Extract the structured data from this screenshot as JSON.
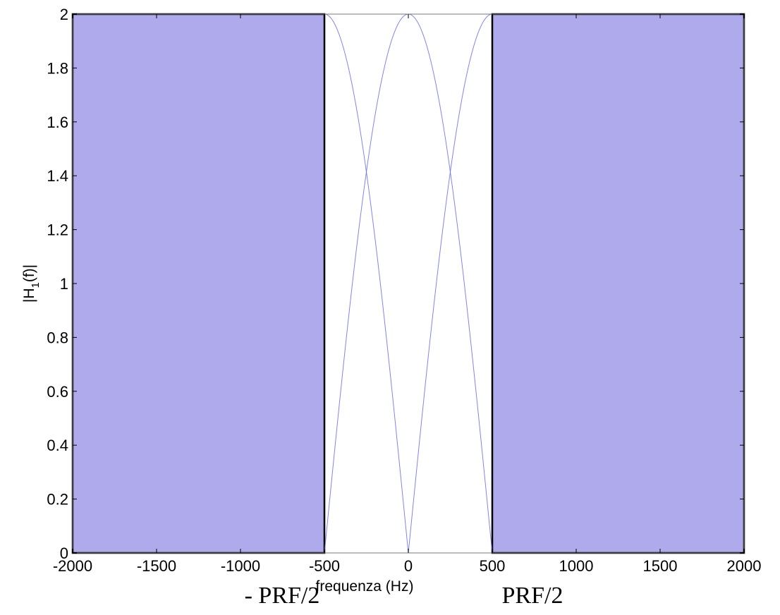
{
  "chart_data": {
    "type": "line",
    "xlabel": "frequenza (Hz)",
    "ylabel_main": "|H",
    "ylabel_sub": "1",
    "ylabel_tail": "(f)|",
    "xlim": [
      -2000,
      2000
    ],
    "ylim": [
      0,
      2
    ],
    "x_ticks": [
      -2000,
      -1500,
      -1000,
      -500,
      0,
      500,
      1000,
      1500,
      2000
    ],
    "x_tick_labels": [
      "-2000",
      "-1500",
      "-1000",
      "-500",
      "0",
      "500",
      "1000",
      "1500",
      "2000"
    ],
    "y_ticks": [
      0,
      0.2,
      0.4,
      0.6,
      0.8,
      1,
      1.2,
      1.4,
      1.6,
      1.8,
      2
    ],
    "y_tick_labels": [
      "0",
      "0.2",
      "0.4",
      "0.6",
      "0.8",
      "1",
      "1.2",
      "1.4",
      "1.6",
      "1.8",
      "2"
    ],
    "grid": false,
    "prf": 1000,
    "series": [
      {
        "function": "2*|sin(pi*f/PRF)|",
        "x_range": [
          -500,
          500
        ]
      },
      {
        "function": "2*|cos(pi*f/PRF)|",
        "x_range": [
          -500,
          500
        ]
      }
    ],
    "shaded_regions": [
      {
        "x": [
          -2000,
          -500
        ],
        "y": [
          0,
          2
        ]
      },
      {
        "x": [
          500,
          2000
        ],
        "y": [
          0,
          2
        ]
      }
    ],
    "annotations": {
      "neg_prf": "- PRF/2",
      "pos_prf": "PRF/2"
    },
    "colors": {
      "shade": "#aeaaeb",
      "line": "#6a6ef0",
      "frame": "#000000"
    }
  }
}
